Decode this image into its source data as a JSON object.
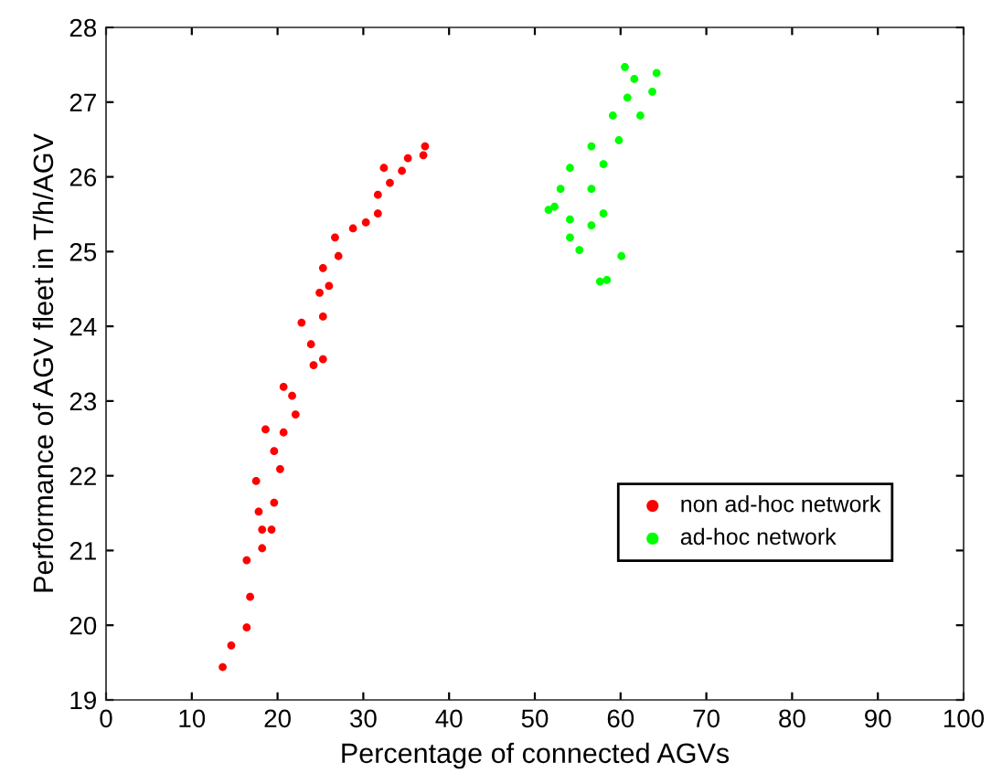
{
  "chart_data": {
    "type": "scatter",
    "xlabel": "Percentage of connected AGVs",
    "ylabel": "Performance of AGV fleet in T/h/AGV",
    "xlim": [
      0,
      100
    ],
    "xticks": [
      0,
      10,
      20,
      30,
      40,
      50,
      60,
      70,
      80,
      90,
      100
    ],
    "ylim": [
      19,
      28
    ],
    "yticks": [
      19,
      20,
      21,
      22,
      23,
      24,
      25,
      26,
      27,
      28
    ],
    "grid": false,
    "legend": "right",
    "marker": "circle",
    "series": [
      {
        "name": "non ad-hoc network",
        "color": "#ff0000",
        "x": [
          13.6,
          14.6,
          16.4,
          16.8,
          16.4,
          18.2,
          18.2,
          19.3,
          17.8,
          19.6,
          17.5,
          20.3,
          19.6,
          18.6,
          20.7,
          22.1,
          21.7,
          20.7,
          24.2,
          25.3,
          23.9,
          22.8,
          25.3,
          24.9,
          26.0,
          25.3,
          27.1,
          26.7,
          28.8,
          30.3,
          31.7,
          31.7,
          33.1,
          32.4,
          34.5,
          35.2,
          37.0,
          37.2
        ],
        "values": [
          19.44,
          19.73,
          19.97,
          20.38,
          20.87,
          21.03,
          21.28,
          21.28,
          21.52,
          21.64,
          21.93,
          22.09,
          22.33,
          22.62,
          22.58,
          22.82,
          23.07,
          23.19,
          23.48,
          23.56,
          23.76,
          24.05,
          24.13,
          24.45,
          24.54,
          24.78,
          24.94,
          25.19,
          25.31,
          25.39,
          25.51,
          25.76,
          25.92,
          26.12,
          26.08,
          26.25,
          26.29,
          26.41
        ]
      },
      {
        "name": "ad-hoc network",
        "color": "#00ff00",
        "x": [
          58.4,
          57.6,
          60.1,
          55.2,
          54.1,
          56.6,
          58.0,
          54.1,
          52.3,
          51.6,
          53.0,
          56.6,
          54.1,
          58.0,
          56.6,
          59.8,
          59.1,
          62.3,
          60.8,
          63.7,
          61.6,
          64.2,
          60.5
        ],
        "values": [
          24.62,
          24.6,
          24.94,
          25.02,
          25.19,
          25.35,
          25.51,
          25.43,
          25.6,
          25.56,
          25.84,
          25.84,
          26.12,
          26.17,
          26.41,
          26.49,
          26.82,
          26.82,
          27.06,
          27.14,
          27.31,
          27.39,
          27.47
        ]
      }
    ]
  }
}
